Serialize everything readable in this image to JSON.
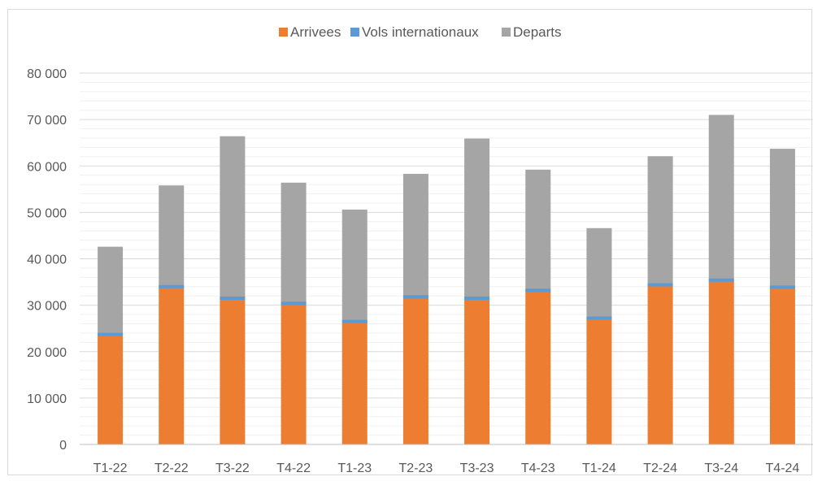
{
  "chart_data": {
    "type": "bar",
    "stacked": true,
    "title": "",
    "xlabel": "",
    "ylabel": "",
    "ylim": [
      0,
      80000
    ],
    "yticks": [
      0,
      10000,
      20000,
      30000,
      40000,
      50000,
      60000,
      70000,
      80000
    ],
    "ytick_labels": [
      "0",
      "10 000",
      "20 000",
      "30 000",
      "40 000",
      "50 000",
      "60 000",
      "70 000",
      "80 000"
    ],
    "grid": true,
    "legend_position": "top",
    "categories": [
      "T1-22",
      "T2-22",
      "T3-22",
      "T4-22",
      "T1-23",
      "T2-23",
      "T3-23",
      "T4-23",
      "T1-24",
      "T2-24",
      "T3-24",
      "T4-24"
    ],
    "series": [
      {
        "name": "Arrivees",
        "kind": "bar",
        "color": "#ed7d31",
        "values": [
          23700,
          34000,
          31500,
          30400,
          26500,
          31800,
          31500,
          33200,
          27200,
          34400,
          35400,
          33900
        ]
      },
      {
        "name": "Vols internationaux",
        "kind": "marker",
        "color": "#5b9bd5",
        "values": [
          23700,
          34000,
          31500,
          30400,
          26500,
          31800,
          31500,
          33200,
          27200,
          34400,
          35400,
          33900
        ]
      },
      {
        "name": "Departs",
        "kind": "bar",
        "color": "#a5a5a5",
        "values": [
          18900,
          21800,
          34900,
          26000,
          24100,
          26500,
          34400,
          26000,
          19400,
          27700,
          35600,
          29800
        ]
      }
    ]
  }
}
